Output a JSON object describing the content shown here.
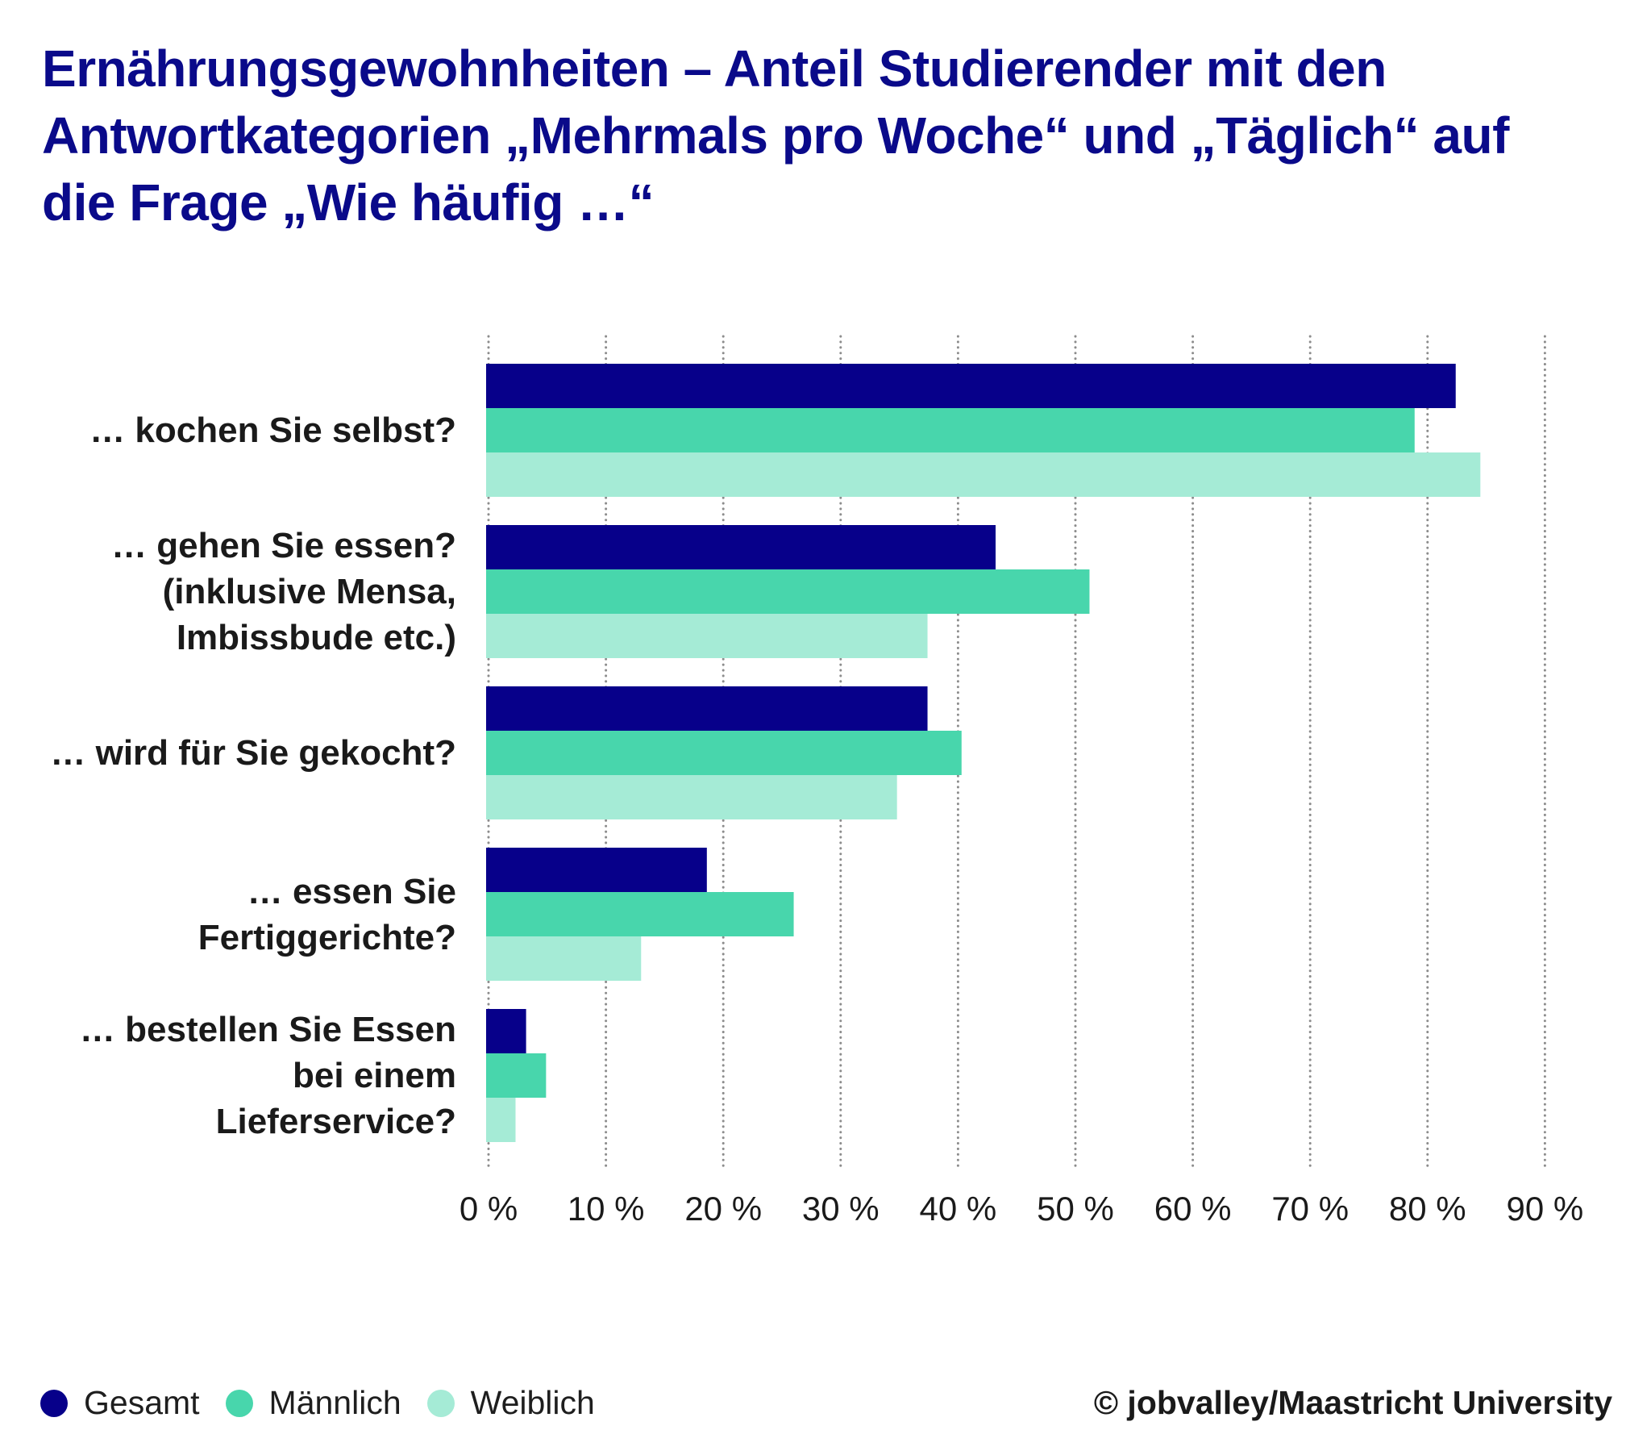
{
  "title_lines": [
    "Ernährungsgewohnheiten – Anteil Studierender mit den",
    "Antwortkategorien „Mehrmals pro Woche“ und „Täglich“ auf",
    "die Frage „Wie häufig …“"
  ],
  "copyright": "© jobvalley/Maastricht University",
  "chart_data": {
    "type": "bar",
    "orientation": "horizontal",
    "title": "Ernährungsgewohnheiten – Anteil Studierender mit den Antwortkategorien „Mehrmals pro Woche“ und „Täglich“ auf die Frage „Wie häufig …“",
    "xlabel": "",
    "ylabel": "",
    "xlim": [
      0,
      90
    ],
    "x_ticks": [
      0,
      10,
      20,
      30,
      40,
      50,
      60,
      70,
      80,
      90
    ],
    "x_tick_labels": [
      "0 %",
      "10 %",
      "20 %",
      "30 %",
      "40 %",
      "50 %",
      "60 %",
      "70 %",
      "80 %",
      "90 %"
    ],
    "grid": "vertical dotted",
    "legend_position": "bottom-left",
    "categories": [
      [
        "… kochen Sie selbst?"
      ],
      [
        "… gehen Sie essen?",
        "(inklusive Mensa,",
        "Imbissbude etc.)"
      ],
      [
        "… wird für Sie gekocht?"
      ],
      [
        "… essen Sie",
        "Fertiggerichte?"
      ],
      [
        "… bestellen Sie Essen",
        "bei einem",
        "Lieferservice?"
      ]
    ],
    "series": [
      {
        "name": "Gesamt",
        "color": "#07008a",
        "values": [
          82.4,
          43.2,
          37.4,
          18.6,
          3.2
        ]
      },
      {
        "name": "Männlich",
        "color": "#48d6ac",
        "values": [
          78.9,
          51.2,
          40.3,
          26.0,
          4.9
        ]
      },
      {
        "name": "Weiblich",
        "color": "#a5ebd6",
        "values": [
          84.5,
          37.4,
          34.8,
          13.0,
          2.3
        ]
      }
    ]
  }
}
